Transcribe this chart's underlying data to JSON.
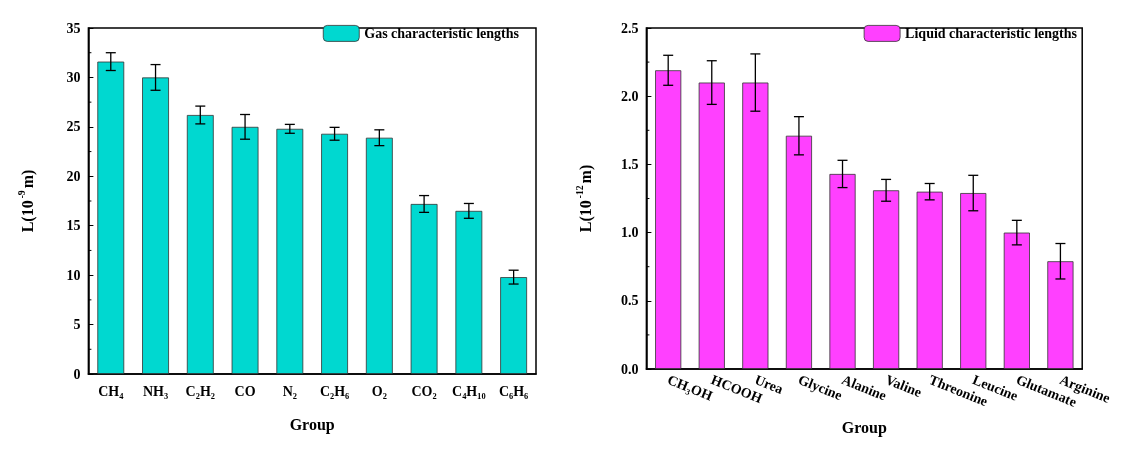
{
  "chart_data": [
    {
      "type": "bar",
      "xlabel": "Group",
      "ylabel": "L(10$^{-9}$m)",
      "categories": [
        "CH₄",
        "NH₃",
        "C₂H₂",
        "CO",
        "N₂",
        "C₂H₆",
        "O₂",
        "CO₂",
        "C₄H₁₀",
        "C₆H₆"
      ],
      "series": [
        {
          "name": "Gas characteristic lengths",
          "color": "#00d8d0",
          "values": [
            31.6,
            30.0,
            26.2,
            25.0,
            24.8,
            24.3,
            23.9,
            17.2,
            16.5,
            9.8
          ],
          "errors": [
            0.9,
            1.3,
            0.9,
            1.25,
            0.45,
            0.65,
            0.8,
            0.85,
            0.75,
            0.7
          ]
        }
      ],
      "ylim": [
        0,
        35
      ],
      "yticks": [
        0,
        5,
        10,
        15,
        20,
        25,
        30,
        35
      ],
      "legend": "top right",
      "grid": false
    },
    {
      "type": "bar",
      "xlabel": "Group",
      "ylabel": "L(10$^{-12}$m)",
      "categories": [
        "CH₃OH",
        "HCOOH",
        "Urea",
        "Glycine",
        "Alanine",
        "Valine",
        "Threonine",
        "Leucine",
        "Glutamate",
        "Arginine"
      ],
      "series": [
        {
          "name": "Liquid characteristic lengths",
          "color": "#ff40ff",
          "values": [
            2.19,
            2.1,
            2.1,
            1.71,
            1.43,
            1.31,
            1.3,
            1.29,
            1.0,
            0.79
          ],
          "errors": [
            0.11,
            0.16,
            0.21,
            0.14,
            0.1,
            0.08,
            0.06,
            0.13,
            0.09,
            0.13
          ]
        }
      ],
      "ylim": [
        0,
        2.5
      ],
      "yticks": [
        {
          "value": 0,
          "label": "0.0"
        },
        0.5,
        {
          "value": 1,
          "label": "1.0"
        },
        1.5,
        {
          "value": 2,
          "label": "2.0"
        },
        2.5
      ],
      "legend": "top right",
      "grid": false
    }
  ]
}
